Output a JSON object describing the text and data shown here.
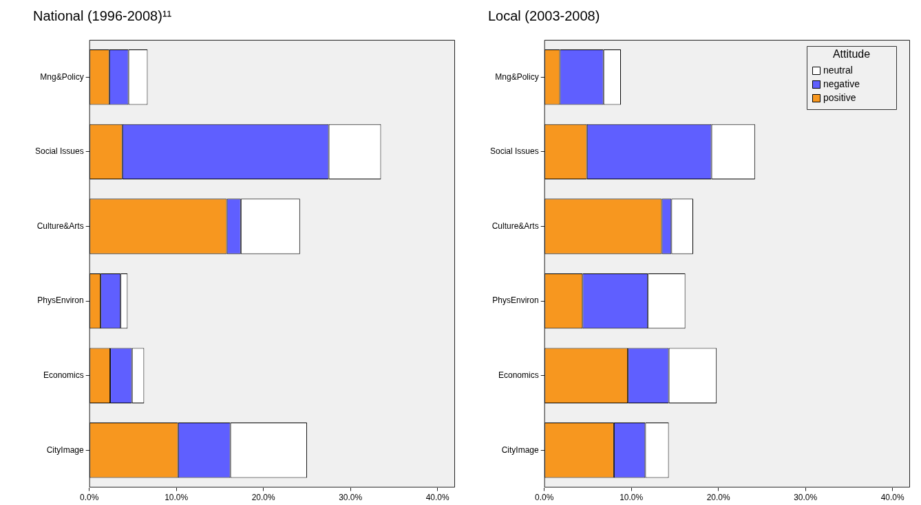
{
  "chart_data": [
    {
      "type": "bar",
      "title": "National (1996-2008)¹¹",
      "orientation": "horizontal",
      "stacked": true,
      "legend": false,
      "categories": [
        "Mng&Policy",
        "Social Issues",
        "Culture&Arts",
        "PhysEnviron",
        "Economics",
        "CityImage"
      ],
      "series": [
        {
          "color": "#f7971f",
          "values": [
            2.3,
            3.8,
            15.8,
            1.3,
            2.4,
            10.2
          ]
        },
        {
          "color": "#5f5fff",
          "values": [
            2.2,
            23.7,
            1.6,
            2.3,
            2.5,
            6.0
          ]
        },
        {
          "color": "#ffffff",
          "values": [
            2.2,
            6.0,
            6.8,
            0.8,
            1.4,
            8.8
          ]
        }
      ],
      "xlim": [
        0,
        42
      ],
      "xticks": [
        {
          "value": 0,
          "label": "0.0%"
        },
        {
          "value": 10,
          "label": "10.0%"
        },
        {
          "value": 20,
          "label": "20.0%"
        },
        {
          "value": 30,
          "label": "30.0%"
        },
        {
          "value": 40,
          "label": "40.0%"
        }
      ]
    },
    {
      "type": "bar",
      "title": "Local (2003-2008)",
      "orientation": "horizontal",
      "stacked": true,
      "legend": "top right",
      "legend_title": "Attitude",
      "categories": [
        "Mng&Policy",
        "Social Issues",
        "Culture&Arts",
        "PhysEnviron",
        "Economics",
        "CityImage"
      ],
      "series": [
        {
          "name": "positive",
          "color": "#f7971f",
          "values": [
            1.8,
            4.9,
            13.5,
            4.4,
            9.6,
            8.0
          ]
        },
        {
          "name": "negative",
          "color": "#5f5fff",
          "values": [
            5.0,
            14.3,
            1.1,
            7.5,
            4.7,
            3.6
          ]
        },
        {
          "name": "neutral",
          "color": "#ffffff",
          "values": [
            2.0,
            5.0,
            2.5,
            4.3,
            5.5,
            2.7
          ]
        }
      ],
      "xlim": [
        0,
        42
      ],
      "xticks": [
        {
          "value": 0,
          "label": "0.0%"
        },
        {
          "value": 10,
          "label": "10.0%"
        },
        {
          "value": 20,
          "label": "20.0%"
        },
        {
          "value": 30,
          "label": "30.0%"
        },
        {
          "value": 40,
          "label": "40.0%"
        }
      ]
    }
  ]
}
